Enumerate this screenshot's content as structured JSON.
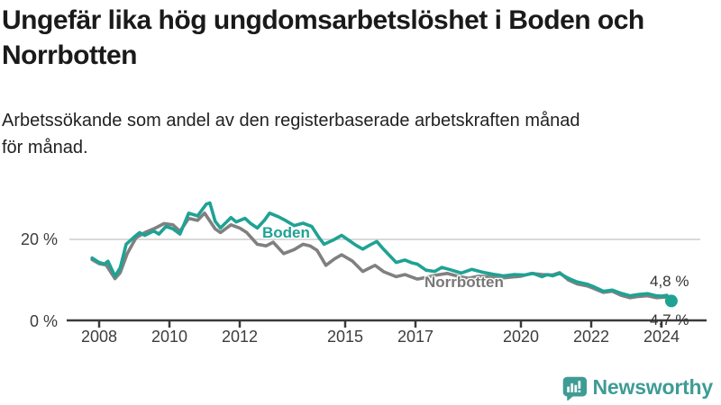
{
  "header": {
    "title": "Ungefär lika hög ungdomsarbetslöshet i Boden och Norrbotten",
    "subtitle": "Arbetssökande som andel av den registerbaserade arbetskraften månad för månad."
  },
  "chart_data": {
    "type": "line",
    "title": "Ungefär lika hög ungdomsarbetslöshet i Boden och Norrbotten",
    "subtitle": "Arbetssökande som andel av den registerbaserade arbetskraften månad för månad.",
    "x_axis": {
      "ticks": [
        2008,
        2010,
        2012,
        2015,
        2017,
        2020,
        2022,
        2024
      ],
      "tick_labels": [
        "2008",
        "2010",
        "2012",
        "2015",
        "2017",
        "2020",
        "2022",
        "2024"
      ],
      "range": [
        2007.8,
        2024.6
      ]
    },
    "y_axis": {
      "ticks": [
        20,
        0
      ],
      "tick_labels": [
        "20 %",
        "0 %"
      ],
      "unit": "%",
      "range": [
        0,
        30
      ],
      "gridline_at": 20
    },
    "legend_position": "inline-labels",
    "grid": "y-only",
    "series": [
      {
        "name": "Boden",
        "color": "#1fa294",
        "end_label": "4,8 %",
        "end_value": 4.8,
        "end_dot": true,
        "points": [
          [
            2007.8,
            15.4
          ],
          [
            2008.0,
            14.3
          ],
          [
            2008.15,
            13.9
          ],
          [
            2008.25,
            14.6
          ],
          [
            2008.45,
            10.9
          ],
          [
            2008.6,
            13.0
          ],
          [
            2008.77,
            18.8
          ],
          [
            2009.0,
            20.6
          ],
          [
            2009.15,
            21.7
          ],
          [
            2009.3,
            21.0
          ],
          [
            2009.55,
            22.1
          ],
          [
            2009.7,
            21.3
          ],
          [
            2009.9,
            23.2
          ],
          [
            2010.1,
            22.6
          ],
          [
            2010.3,
            21.3
          ],
          [
            2010.55,
            26.5
          ],
          [
            2010.8,
            25.8
          ],
          [
            2011.05,
            28.7
          ],
          [
            2011.15,
            29.0
          ],
          [
            2011.3,
            24.5
          ],
          [
            2011.45,
            22.8
          ],
          [
            2011.75,
            25.4
          ],
          [
            2011.9,
            24.3
          ],
          [
            2012.15,
            25.2
          ],
          [
            2012.3,
            24.0
          ],
          [
            2012.5,
            22.8
          ],
          [
            2012.7,
            24.7
          ],
          [
            2012.85,
            26.5
          ],
          [
            2013.1,
            25.6
          ],
          [
            2013.3,
            24.7
          ],
          [
            2013.55,
            23.4
          ],
          [
            2013.8,
            24.0
          ],
          [
            2014.05,
            23.2
          ],
          [
            2014.25,
            20.5
          ],
          [
            2014.4,
            18.8
          ],
          [
            2014.65,
            19.8
          ],
          [
            2014.9,
            21.0
          ],
          [
            2015.1,
            19.8
          ],
          [
            2015.3,
            18.6
          ],
          [
            2015.5,
            17.6
          ],
          [
            2015.7,
            18.6
          ],
          [
            2015.9,
            19.5
          ],
          [
            2016.1,
            17.5
          ],
          [
            2016.45,
            14.3
          ],
          [
            2016.7,
            14.9
          ],
          [
            2016.9,
            14.2
          ],
          [
            2017.05,
            13.9
          ],
          [
            2017.3,
            12.4
          ],
          [
            2017.55,
            12.1
          ],
          [
            2017.75,
            13.1
          ],
          [
            2018.0,
            12.5
          ],
          [
            2018.3,
            11.7
          ],
          [
            2018.6,
            12.6
          ],
          [
            2018.9,
            11.9
          ],
          [
            2019.2,
            11.4
          ],
          [
            2019.5,
            11.0
          ],
          [
            2019.8,
            11.3
          ],
          [
            2020.1,
            11.2
          ],
          [
            2020.35,
            11.6
          ],
          [
            2020.6,
            10.8
          ],
          [
            2020.75,
            11.3
          ],
          [
            2020.9,
            11.0
          ],
          [
            2021.1,
            11.6
          ],
          [
            2021.35,
            10.4
          ],
          [
            2021.6,
            9.5
          ],
          [
            2021.9,
            8.9
          ],
          [
            2022.1,
            8.2
          ],
          [
            2022.35,
            7.2
          ],
          [
            2022.6,
            7.5
          ],
          [
            2022.85,
            6.7
          ],
          [
            2023.1,
            6.1
          ],
          [
            2023.35,
            6.4
          ],
          [
            2023.6,
            6.6
          ],
          [
            2023.85,
            6.1
          ],
          [
            2024.0,
            6.0
          ],
          [
            2024.15,
            6.2
          ],
          [
            2024.28,
            4.8
          ]
        ]
      },
      {
        "name": "Norrbotten",
        "color": "#808080",
        "end_label": "4,7 %",
        "end_value": 4.7,
        "end_dot": false,
        "points": [
          [
            2007.8,
            15.0
          ],
          [
            2008.0,
            14.0
          ],
          [
            2008.2,
            13.7
          ],
          [
            2008.45,
            10.3
          ],
          [
            2008.6,
            11.8
          ],
          [
            2008.8,
            16.5
          ],
          [
            2009.05,
            20.4
          ],
          [
            2009.3,
            21.7
          ],
          [
            2009.6,
            22.8
          ],
          [
            2009.85,
            23.9
          ],
          [
            2010.1,
            23.6
          ],
          [
            2010.3,
            22.0
          ],
          [
            2010.55,
            25.2
          ],
          [
            2010.8,
            24.7
          ],
          [
            2011.0,
            26.5
          ],
          [
            2011.3,
            22.6
          ],
          [
            2011.45,
            21.7
          ],
          [
            2011.75,
            23.6
          ],
          [
            2012.0,
            22.8
          ],
          [
            2012.2,
            21.7
          ],
          [
            2012.5,
            18.8
          ],
          [
            2012.75,
            18.4
          ],
          [
            2012.95,
            19.3
          ],
          [
            2013.25,
            16.5
          ],
          [
            2013.55,
            17.5
          ],
          [
            2013.8,
            18.8
          ],
          [
            2014.0,
            18.4
          ],
          [
            2014.2,
            17.3
          ],
          [
            2014.45,
            13.6
          ],
          [
            2014.7,
            15.2
          ],
          [
            2014.9,
            16.2
          ],
          [
            2015.2,
            14.7
          ],
          [
            2015.5,
            12.1
          ],
          [
            2015.85,
            13.6
          ],
          [
            2016.1,
            12.0
          ],
          [
            2016.45,
            10.8
          ],
          [
            2016.7,
            11.3
          ],
          [
            2017.05,
            10.2
          ],
          [
            2017.3,
            10.6
          ],
          [
            2017.6,
            11.2
          ],
          [
            2017.9,
            11.6
          ],
          [
            2018.2,
            10.9
          ],
          [
            2018.5,
            10.4
          ],
          [
            2018.8,
            10.9
          ],
          [
            2019.1,
            10.8
          ],
          [
            2019.4,
            10.4
          ],
          [
            2019.7,
            10.7
          ],
          [
            2020.0,
            10.9
          ],
          [
            2020.3,
            11.6
          ],
          [
            2020.6,
            11.3
          ],
          [
            2020.9,
            11.2
          ],
          [
            2021.1,
            11.8
          ],
          [
            2021.35,
            10.0
          ],
          [
            2021.6,
            9.0
          ],
          [
            2021.9,
            8.5
          ],
          [
            2022.1,
            7.8
          ],
          [
            2022.35,
            6.9
          ],
          [
            2022.6,
            7.2
          ],
          [
            2022.85,
            6.2
          ],
          [
            2023.1,
            5.6
          ],
          [
            2023.35,
            5.9
          ],
          [
            2023.6,
            6.1
          ],
          [
            2023.85,
            5.6
          ],
          [
            2024.0,
            5.7
          ],
          [
            2024.15,
            5.8
          ],
          [
            2024.28,
            4.7
          ]
        ]
      }
    ]
  },
  "colors": {
    "boden": "#1fa294",
    "norrbotten": "#808080",
    "gridline": "#d9d9d9",
    "axis": "#3a3a3a",
    "brand_teal": "#3e9c95"
  },
  "footer": {
    "brand": "Newsworthy"
  }
}
